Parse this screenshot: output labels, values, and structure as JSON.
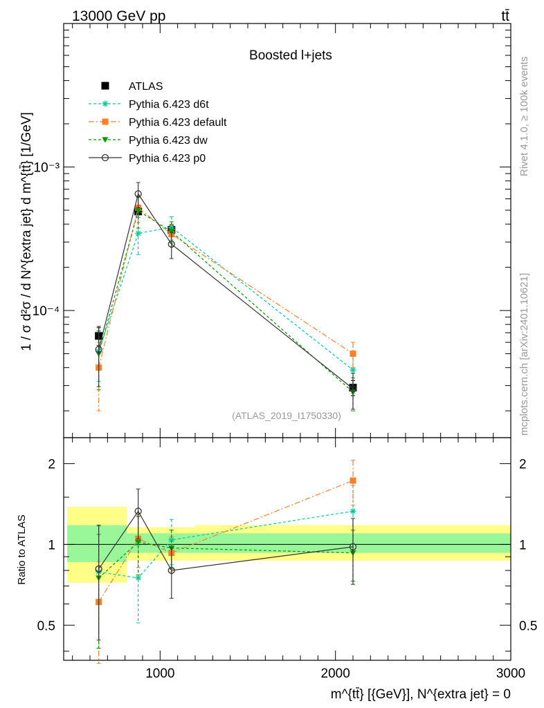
{
  "header": {
    "beam": "13000 GeV pp",
    "process": "tt̄"
  },
  "side_labels": {
    "rivet": "Rivet 4.1.0, ≥ 100k events",
    "source": "mcplots.cern.ch [arXiv:2401.10621]"
  },
  "chart_data": [
    {
      "type": "line",
      "panel": "main",
      "title": "Boosted l+jets",
      "analysis_tag": "(ATLAS_2019_I1750330)",
      "ylabel": "1 / σ d²σ / d N^{extra jet} d m^{tt̄} [1/GeV]",
      "y_scale": "log",
      "ylim": [
        1.3e-05,
        0.01
      ],
      "xlim": [
        450,
        3000
      ],
      "y_ticks": [
        {
          "value": 0.0001,
          "label": "10⁻⁴"
        },
        {
          "value": 0.001,
          "label": "10⁻³"
        }
      ],
      "legend_position": "top-left",
      "x": [
        650,
        875,
        1065,
        2100
      ],
      "series": [
        {
          "name": "ATLAS",
          "color": "#000000",
          "marker": "square",
          "dash": "",
          "values": [
            6.65e-05,
            0.00049,
            0.000365,
            2.9e-05
          ],
          "err_low": [
            9.5e-06,
            4.5e-05,
            3e-05,
            3.5e-06
          ],
          "err_high": [
            9.5e-06,
            4.5e-05,
            3e-05,
            3.5e-06
          ]
        },
        {
          "name": "Pythia 6.423 d6t",
          "color": "#00cc99",
          "marker": "star",
          "dash": "4,3",
          "values": [
            5.2e-05,
            0.000345,
            0.00038,
            3.85e-05
          ],
          "err_low": [
            2e-05,
            0.0001,
            7e-05,
            1.2e-05
          ],
          "err_high": [
            2e-05,
            0.0001,
            7e-05,
            1.2e-05
          ]
        },
        {
          "name": "Pythia 6.423 default",
          "color": "#ff7f27",
          "marker": "square",
          "dash": "8,3,2,3",
          "values": [
            4e-05,
            0.00052,
            0.00034,
            5e-05
          ],
          "err_low": [
            2e-05,
            0.00011,
            6e-05,
            1e-05
          ],
          "err_high": [
            2e-05,
            0.00011,
            6e-05,
            1e-05
          ]
        },
        {
          "name": "Pythia 6.423 dw",
          "color": "#009900",
          "marker": "triangle-down",
          "dash": "4,3",
          "values": [
            5e-05,
            0.000495,
            0.000355,
            2.7e-05
          ],
          "err_low": [
            2.2e-05,
            0.00012,
            6e-05,
            7e-06
          ],
          "err_high": [
            2.2e-05,
            0.00012,
            6e-05,
            7e-06
          ]
        },
        {
          "name": "Pythia 6.423 p0",
          "color": "#333333",
          "marker": "circle-open",
          "dash": "",
          "values": [
            5.35e-05,
            0.00065,
            0.00029,
            2.85e-05
          ],
          "err_low": [
            2.4e-05,
            0.00013,
            6e-05,
            8e-06
          ],
          "err_high": [
            2.4e-05,
            0.00013,
            6e-05,
            8e-06
          ]
        }
      ]
    },
    {
      "type": "line",
      "panel": "ratio",
      "ylabel": "Ratio to ATLAS",
      "xlabel": "m^{tt̄} [{GeV}], N^{extra jet} = 0",
      "y_scale": "log",
      "ylim": [
        0.37,
        2.5
      ],
      "xlim": [
        450,
        3000
      ],
      "x_ticks": [
        1000,
        2000,
        3000
      ],
      "y_ticks": [
        0.5,
        1,
        2
      ],
      "bands": [
        {
          "x_from": 470,
          "x_to": 810,
          "inner": [
            0.86,
            1.18
          ],
          "outer": [
            0.72,
            1.38
          ]
        },
        {
          "x_from": 810,
          "x_to": 1200,
          "inner": [
            0.93,
            1.1
          ],
          "outer": [
            0.87,
            1.16
          ]
        },
        {
          "x_from": 1200,
          "x_to": 3000,
          "inner": [
            0.93,
            1.1
          ],
          "outer": [
            0.87,
            1.18
          ]
        }
      ],
      "x": [
        650,
        875,
        1065,
        2100
      ],
      "series": [
        {
          "name": "Pythia 6.423 d6t",
          "color": "#00cc99",
          "marker": "star",
          "dash": "4,3",
          "values": [
            0.79,
            0.75,
            1.04,
            1.33
          ],
          "err_low": [
            0.38,
            0.24,
            0.2,
            0.33
          ],
          "err_high": [
            0.38,
            0.24,
            0.2,
            0.33
          ]
        },
        {
          "name": "Pythia 6.423 default",
          "color": "#ff7f27",
          "marker": "square",
          "dash": "8,3,2,3",
          "values": [
            0.61,
            1.05,
            0.93,
            1.73
          ],
          "err_low": [
            0.25,
            0.23,
            0.14,
            0.33
          ],
          "err_high": [
            0.25,
            0.23,
            0.14,
            0.33
          ]
        },
        {
          "name": "Pythia 6.423 dw",
          "color": "#009900",
          "marker": "triangle-down",
          "dash": "4,3",
          "values": [
            0.75,
            1.02,
            0.97,
            0.93
          ],
          "err_low": [
            0.34,
            0.25,
            0.16,
            0.2
          ],
          "err_high": [
            0.34,
            0.25,
            0.16,
            0.2
          ]
        },
        {
          "name": "Pythia 6.423 p0",
          "color": "#333333",
          "marker": "circle-open",
          "dash": "",
          "values": [
            0.81,
            1.33,
            0.8,
            0.98
          ],
          "err_low": [
            0.37,
            0.28,
            0.17,
            0.27
          ],
          "err_high": [
            0.37,
            0.28,
            0.17,
            0.27
          ]
        }
      ]
    }
  ]
}
